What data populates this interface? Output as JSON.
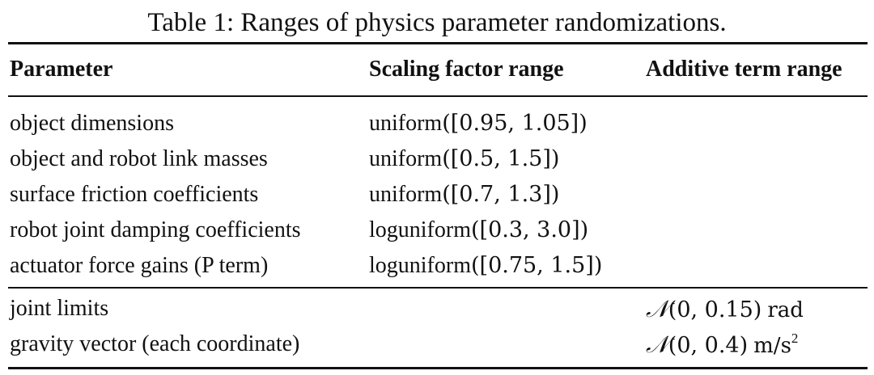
{
  "caption": "Table 1: Ranges of physics parameter randomizations.",
  "headers": {
    "parameter": "Parameter",
    "scaling": "Scaling factor range",
    "additive": "Additive term range"
  },
  "scaling_rows": [
    {
      "parameter": "object dimensions",
      "dist": "uniform",
      "range": "([0.95, 1.05])"
    },
    {
      "parameter": "object and robot link masses",
      "dist": "uniform",
      "range": "([0.5, 1.5])"
    },
    {
      "parameter": "surface friction coefficients",
      "dist": "uniform",
      "range": "([0.7, 1.3])"
    },
    {
      "parameter": "robot joint damping coefficients",
      "dist": "loguniform",
      "range": "([0.3, 3.0])"
    },
    {
      "parameter": "actuator force gains (P term)",
      "dist": "loguniform",
      "range": "([0.75, 1.5])"
    }
  ],
  "additive_rows": [
    {
      "parameter": "joint limits",
      "dist": "𝒩",
      "args": "(0, 0.15)",
      "unit": "rad",
      "unit_sup": ""
    },
    {
      "parameter": "gravity vector (each coordinate)",
      "dist": "𝒩",
      "args": "(0, 0.4)",
      "unit": "m/s",
      "unit_sup": "2"
    }
  ]
}
